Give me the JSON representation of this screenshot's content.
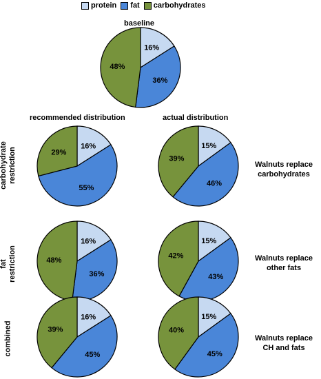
{
  "legend": [
    {
      "label": "protein",
      "color": "#c6d9f1"
    },
    {
      "label": "fat",
      "color": "#4a86d8"
    },
    {
      "label": "carbohydrates",
      "color": "#77933c"
    }
  ],
  "column_headers": {
    "recommended": "recommended distribution",
    "actual": "actual distribution"
  },
  "row_labels": {
    "carb": [
      "carbohydrate",
      "restriction"
    ],
    "fat": [
      "fat",
      "restriction"
    ],
    "combined": [
      "combined"
    ]
  },
  "notes": {
    "carb": [
      "Walnuts replace",
      "carbohydrates"
    ],
    "fat": [
      "Walnuts replace",
      "other fats"
    ],
    "combined": [
      "Walnuts replace",
      "CH and fats"
    ]
  },
  "chart_data": [
    {
      "type": "pie",
      "title": "baseline",
      "categories": [
        "protein",
        "fat",
        "carbohydrates"
      ],
      "values": [
        16,
        36,
        48
      ],
      "data_labels": [
        "16%",
        "36%",
        "48%"
      ]
    },
    {
      "type": "pie",
      "title": "",
      "categories": [
        "protein",
        "fat",
        "carbohydrates"
      ],
      "values": [
        16,
        55,
        29
      ],
      "data_labels": [
        "16%",
        "55%",
        "29%"
      ]
    },
    {
      "type": "pie",
      "title": "",
      "categories": [
        "protein",
        "fat",
        "carbohydrates"
      ],
      "values": [
        15,
        46,
        39
      ],
      "data_labels": [
        "15%",
        "46%",
        "39%"
      ]
    },
    {
      "type": "pie",
      "title": "",
      "categories": [
        "protein",
        "fat",
        "carbohydrates"
      ],
      "values": [
        16,
        36,
        48
      ],
      "data_labels": [
        "16%",
        "36%",
        "48%"
      ]
    },
    {
      "type": "pie",
      "title": "",
      "categories": [
        "protein",
        "fat",
        "carbohydrates"
      ],
      "values": [
        15,
        43,
        42
      ],
      "data_labels": [
        "15%",
        "43%",
        "42%"
      ]
    },
    {
      "type": "pie",
      "title": "",
      "categories": [
        "protein",
        "fat",
        "carbohydrates"
      ],
      "values": [
        16,
        45,
        39
      ],
      "data_labels": [
        "16%",
        "45%",
        "39%"
      ]
    },
    {
      "type": "pie",
      "title": "",
      "categories": [
        "protein",
        "fat",
        "carbohydrates"
      ],
      "values": [
        15,
        45,
        40
      ],
      "data_labels": [
        "15%",
        "45%",
        "40%"
      ]
    }
  ]
}
